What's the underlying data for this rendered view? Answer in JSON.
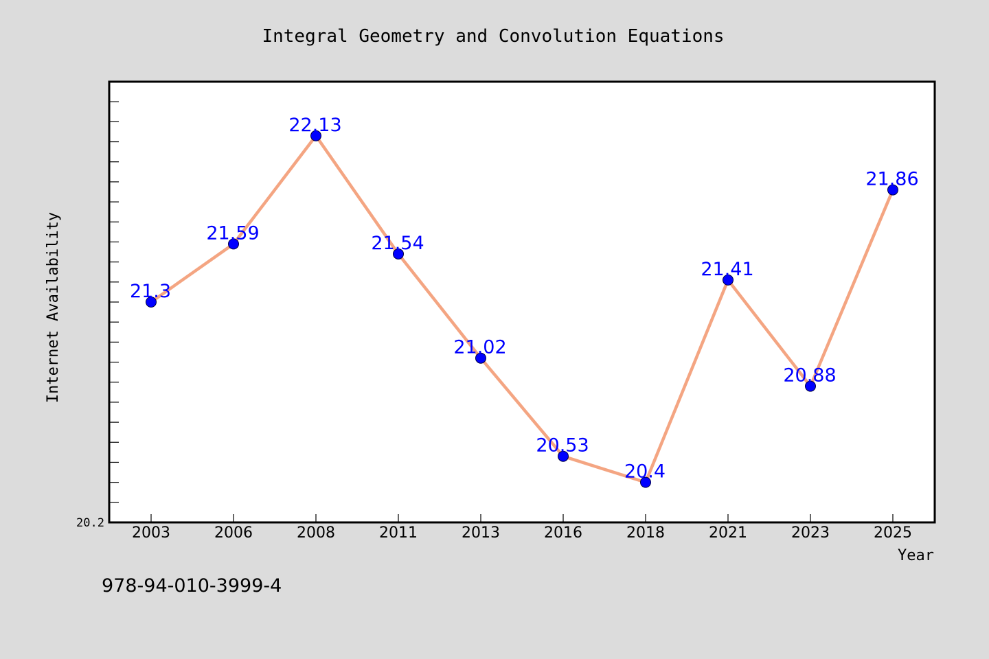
{
  "chart_data": {
    "type": "line",
    "title": "Integral Geometry and Convolution Equations",
    "xlabel": "Year",
    "ylabel": "Internet Availability",
    "categories": [
      "2003",
      "2006",
      "2008",
      "2011",
      "2013",
      "2016",
      "2018",
      "2021",
      "2023",
      "2025"
    ],
    "series": [
      {
        "values": [
          21.3,
          21.59,
          22.13,
          21.54,
          21.02,
          20.53,
          20.4,
          21.41,
          20.88,
          21.86
        ],
        "data_labels": [
          "21.3",
          "21.59",
          "22.13",
          "21.54",
          "21.02",
          "20.53",
          "20.4",
          "21.41",
          "20.88",
          "21.86"
        ]
      }
    ],
    "ylim": [
      20.2,
      22.4
    ],
    "y_tick_labels": [
      "20.2"
    ],
    "grid": false,
    "legend": "none"
  },
  "footer_text": "978-94-010-3999-4",
  "colors": {
    "background": "#dcdcdc",
    "plot_background": "#ffffff",
    "line": "#f4a582",
    "marker": "#0000ff",
    "data_label": "#0000ff",
    "text": "#000000"
  }
}
